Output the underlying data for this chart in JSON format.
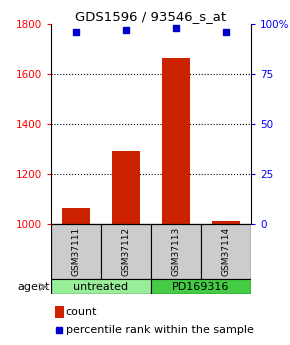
{
  "title": "GDS1596 / 93546_s_at",
  "samples": [
    "GSM37111",
    "GSM37112",
    "GSM37113",
    "GSM37114"
  ],
  "counts": [
    1065,
    1295,
    1665,
    1015
  ],
  "percentiles": [
    96,
    97,
    98,
    96
  ],
  "ylim_left": [
    1000,
    1800
  ],
  "ylim_right": [
    0,
    100
  ],
  "yticks_left": [
    1000,
    1200,
    1400,
    1600,
    1800
  ],
  "yticks_right": [
    0,
    25,
    50,
    75,
    100
  ],
  "bar_color": "#cc2200",
  "dot_color": "#0000cc",
  "sample_box_color": "#cccccc",
  "agent_colors": [
    "#99ee99",
    "#44cc44"
  ],
  "legend_count_label": "count",
  "legend_pct_label": "percentile rank within the sample"
}
